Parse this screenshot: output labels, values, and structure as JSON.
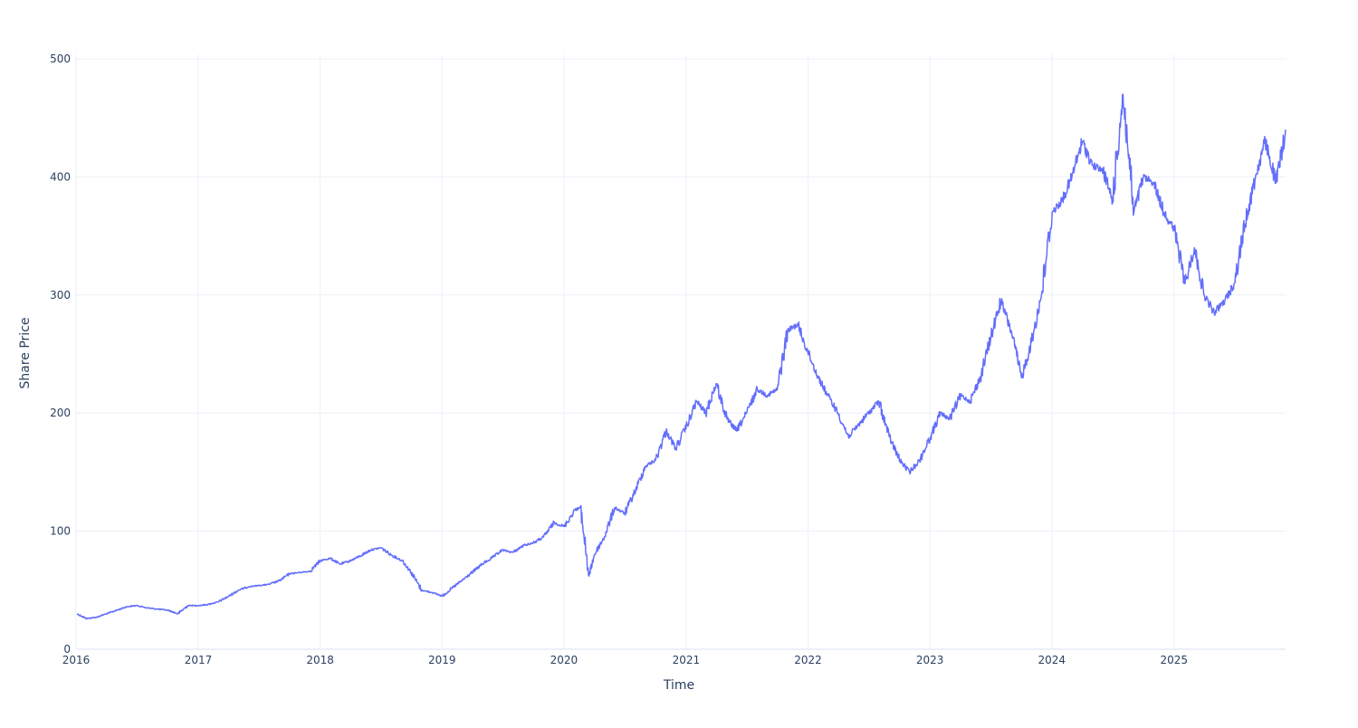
{
  "chart_data": {
    "type": "line",
    "title": "",
    "xlabel": "Time",
    "ylabel": "Share Price",
    "x_ticks": [
      "2016",
      "2017",
      "2018",
      "2019",
      "2020",
      "2021",
      "2022",
      "2023",
      "2024",
      "2025"
    ],
    "y_ticks": [
      0,
      100,
      200,
      300,
      400,
      500
    ],
    "xlim": [
      "2016-01-01",
      "2025-12-01"
    ],
    "ylim": [
      0,
      500
    ],
    "grid": true,
    "legend": false,
    "line_color": "#636efa",
    "series": [
      {
        "x": [
          "2016-01-04",
          "2016-02-01",
          "2016-03-01",
          "2016-04-01",
          "2016-05-02",
          "2016-06-01",
          "2016-07-01",
          "2016-08-01",
          "2016-09-01",
          "2016-10-03",
          "2016-11-01",
          "2016-12-01",
          "2017-01-03",
          "2017-02-01",
          "2017-03-01",
          "2017-04-03",
          "2017-05-01",
          "2017-06-01",
          "2017-07-03",
          "2017-08-01",
          "2017-09-01",
          "2017-10-02",
          "2017-11-01",
          "2017-12-01",
          "2018-01-02",
          "2018-02-01",
          "2018-03-01",
          "2018-04-02",
          "2018-05-01",
          "2018-06-01",
          "2018-07-02",
          "2018-08-01",
          "2018-09-04",
          "2018-10-01",
          "2018-11-01",
          "2018-12-03",
          "2019-01-02",
          "2019-02-01",
          "2019-03-01",
          "2019-04-01",
          "2019-05-01",
          "2019-06-03",
          "2019-07-01",
          "2019-08-01",
          "2019-09-03",
          "2019-10-01",
          "2019-11-01",
          "2019-12-02",
          "2020-01-02",
          "2020-02-03",
          "2020-02-20",
          "2020-03-16",
          "2020-04-01",
          "2020-05-01",
          "2020-06-01",
          "2020-07-01",
          "2020-08-03",
          "2020-09-01",
          "2020-10-01",
          "2020-11-02",
          "2020-12-01",
          "2021-01-04",
          "2021-02-01",
          "2021-03-01",
          "2021-04-01",
          "2021-05-03",
          "2021-06-01",
          "2021-07-01",
          "2021-08-02",
          "2021-09-01",
          "2021-10-01",
          "2021-11-01",
          "2021-12-01",
          "2022-01-03",
          "2022-02-01",
          "2022-03-01",
          "2022-04-01",
          "2022-05-02",
          "2022-06-01",
          "2022-07-01",
          "2022-08-01",
          "2022-09-01",
          "2022-10-03",
          "2022-11-01",
          "2022-12-01",
          "2023-01-03",
          "2023-02-01",
          "2023-03-01",
          "2023-04-03",
          "2023-05-01",
          "2023-06-01",
          "2023-07-03",
          "2023-08-01",
          "2023-09-01",
          "2023-10-02",
          "2023-11-01",
          "2023-12-01",
          "2024-01-02",
          "2024-02-01",
          "2024-03-01",
          "2024-04-01",
          "2024-05-01",
          "2024-06-03",
          "2024-07-01",
          "2024-08-01",
          "2024-09-03",
          "2024-10-01",
          "2024-11-01",
          "2024-12-02",
          "2025-01-02",
          "2025-02-03",
          "2025-03-03",
          "2025-04-01",
          "2025-05-01",
          "2025-06-02",
          "2025-07-01",
          "2025-08-01",
          "2025-09-02",
          "2025-10-01",
          "2025-11-03",
          "2025-12-01"
        ],
        "y": [
          30,
          26,
          27,
          30,
          33,
          36,
          37,
          35,
          34,
          33,
          30,
          37,
          37,
          38,
          40,
          45,
          50,
          53,
          54,
          55,
          58,
          64,
          65,
          66,
          75,
          77,
          72,
          75,
          79,
          84,
          86,
          80,
          75,
          65,
          50,
          48,
          45,
          52,
          58,
          65,
          72,
          78,
          84,
          82,
          88,
          90,
          95,
          107,
          104,
          118,
          120,
          62,
          80,
          95,
          120,
          115,
          135,
          155,
          160,
          185,
          170,
          190,
          210,
          200,
          225,
          195,
          185,
          200,
          220,
          215,
          220,
          270,
          275,
          250,
          230,
          215,
          200,
          180,
          190,
          200,
          210,
          180,
          160,
          150,
          160,
          180,
          200,
          195,
          215,
          210,
          230,
          265,
          295,
          270,
          230,
          260,
          300,
          370,
          380,
          400,
          430,
          410,
          405,
          380,
          470,
          370,
          400,
          395,
          370,
          355,
          310,
          340,
          300,
          285,
          295,
          310,
          360,
          400,
          430,
          395,
          440
        ]
      }
    ]
  }
}
